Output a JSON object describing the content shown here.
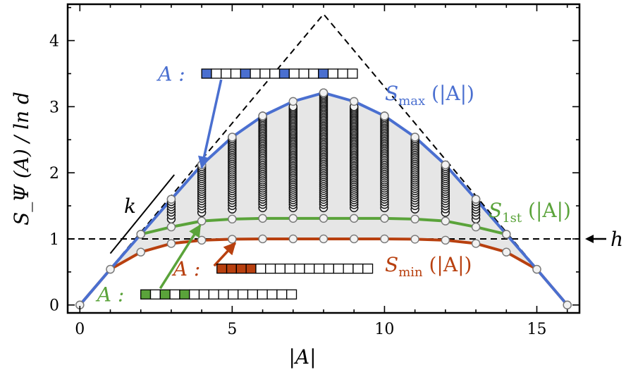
{
  "chart_data": {
    "type": "scatter",
    "xlabel": "|A|",
    "ylabel": "S_Ψ (A) / ln d",
    "xlim": [
      -0.4,
      16.4
    ],
    "ylim": [
      -0.12,
      4.55
    ],
    "xticks": [
      0,
      5,
      10,
      15
    ],
    "yticks": [
      0,
      1,
      2,
      3,
      4
    ],
    "grid": false,
    "colors": {
      "max": "#4a6fd0",
      "first": "#5aa33a",
      "min": "#b8400f",
      "region": "#e6e6e6"
    },
    "curves": {
      "max": {
        "label_main": "S",
        "label_sub": "max",
        "label_arg": " (|A|)",
        "x": [
          0,
          1,
          2,
          3,
          4,
          5,
          6,
          7,
          8,
          9,
          10,
          11,
          12,
          13,
          14,
          15,
          16
        ],
        "y": [
          0,
          0.54,
          1.07,
          1.6,
          2.12,
          2.54,
          2.86,
          3.08,
          3.21,
          3.08,
          2.86,
          2.54,
          2.12,
          1.6,
          1.07,
          0.54,
          0
        ]
      },
      "first": {
        "label_main": "S",
        "label_sub": "1st",
        "label_arg": " (|A|)",
        "x": [
          2,
          3,
          4,
          5,
          6,
          7,
          8,
          9,
          10,
          11,
          12,
          13,
          14
        ],
        "y": [
          1.07,
          1.18,
          1.27,
          1.3,
          1.31,
          1.31,
          1.31,
          1.31,
          1.31,
          1.3,
          1.27,
          1.18,
          1.07
        ]
      },
      "min": {
        "label_main": "S",
        "label_sub": "min",
        "label_arg": " (|A|)",
        "x": [
          0,
          1,
          2,
          3,
          4,
          5,
          6,
          7,
          8,
          9,
          10,
          11,
          12,
          13,
          14,
          15,
          16
        ],
        "y": [
          0,
          0.54,
          0.8,
          0.93,
          0.98,
          0.995,
          1.0,
          1.0,
          1.0,
          1.0,
          1.0,
          0.995,
          0.98,
          0.93,
          0.8,
          0.54,
          0
        ]
      }
    },
    "page_curve": {
      "x": [
        0,
        8,
        16
      ],
      "y": [
        0,
        4.4,
        0
      ]
    },
    "h_line": {
      "y": 1.0,
      "label": "h"
    },
    "slope_line": {
      "x": [
        1,
        3.1
      ],
      "y": [
        0.78,
        1.97
      ],
      "label": "k"
    },
    "scatter_columns": {
      "x": [
        2,
        3,
        4,
        5,
        6,
        7,
        8,
        9,
        10,
        11,
        12,
        13,
        14
      ],
      "ymin": [
        1.07,
        1.3,
        1.4,
        1.45,
        1.47,
        1.47,
        1.47,
        1.47,
        1.47,
        1.45,
        1.4,
        1.3,
        1.07
      ],
      "ymax": [
        1.07,
        1.6,
        2.12,
        2.54,
        2.86,
        3.0,
        3.21,
        3.0,
        2.86,
        2.54,
        2.12,
        1.6,
        1.07
      ],
      "count": [
        1,
        8,
        22,
        36,
        50,
        60,
        66,
        60,
        50,
        36,
        22,
        8,
        1
      ]
    },
    "subsets": [
      {
        "label": "A :",
        "color_key": "max",
        "cells": 16,
        "filled": [
          0,
          4,
          8,
          12
        ],
        "x_start": 4.0,
        "y": 3.5,
        "arrow_to": [
          4.0,
          2.12
        ]
      },
      {
        "label": "A :",
        "color_key": "min",
        "cells": 16,
        "filled": [
          0,
          1,
          2,
          3
        ],
        "x_start": 4.5,
        "y": 0.55,
        "arrow_to": [
          5.1,
          0.98
        ]
      },
      {
        "label": "A :",
        "color_key": "first",
        "cells": 16,
        "filled": [
          0,
          2,
          4
        ],
        "x_start": 2.0,
        "y": 0.16,
        "arrow_to": [
          3.95,
          1.27
        ]
      }
    ]
  }
}
